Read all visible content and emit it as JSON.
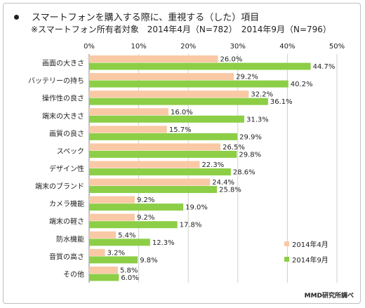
{
  "title": "スマートフォンを購入する際に、重視する（した）項目",
  "subtitle": "※スマートフォン所有者対象　2014年4月（N=782）　2014年9月（N=796）",
  "source": "MMD研究所調べ",
  "colors": {
    "series_apr": "#f9c8a5",
    "series_sep": "#8cce46",
    "grid": "#d0d0d0",
    "axis": "#808080"
  },
  "chart_data": {
    "type": "bar",
    "orientation": "horizontal",
    "xlim": [
      0,
      50
    ],
    "ticks": [
      0,
      10,
      20,
      30,
      40,
      50
    ],
    "tick_labels": [
      "0%",
      "10%",
      "20%",
      "30%",
      "40%",
      "50%"
    ],
    "grid": true,
    "legend_position": "bottom-right",
    "categories": [
      "画面の大きさ",
      "バッテリーの持ち",
      "操作性の良さ",
      "端末の大きさ",
      "画質の良さ",
      "スペック",
      "デザイン性",
      "端末のブランド",
      "カメラ機能",
      "端末の軽さ",
      "防水機能",
      "音質の高さ",
      "その他"
    ],
    "series": [
      {
        "name": "2014年4月",
        "values": [
          26.0,
          29.2,
          32.2,
          16.0,
          15.7,
          26.5,
          22.3,
          24.4,
          9.2,
          9.2,
          5.4,
          3.2,
          5.8
        ]
      },
      {
        "name": "2014年9月",
        "values": [
          44.7,
          40.2,
          36.1,
          31.3,
          29.9,
          29.8,
          28.6,
          25.8,
          19.0,
          17.8,
          12.3,
          9.8,
          6.0
        ]
      }
    ]
  }
}
